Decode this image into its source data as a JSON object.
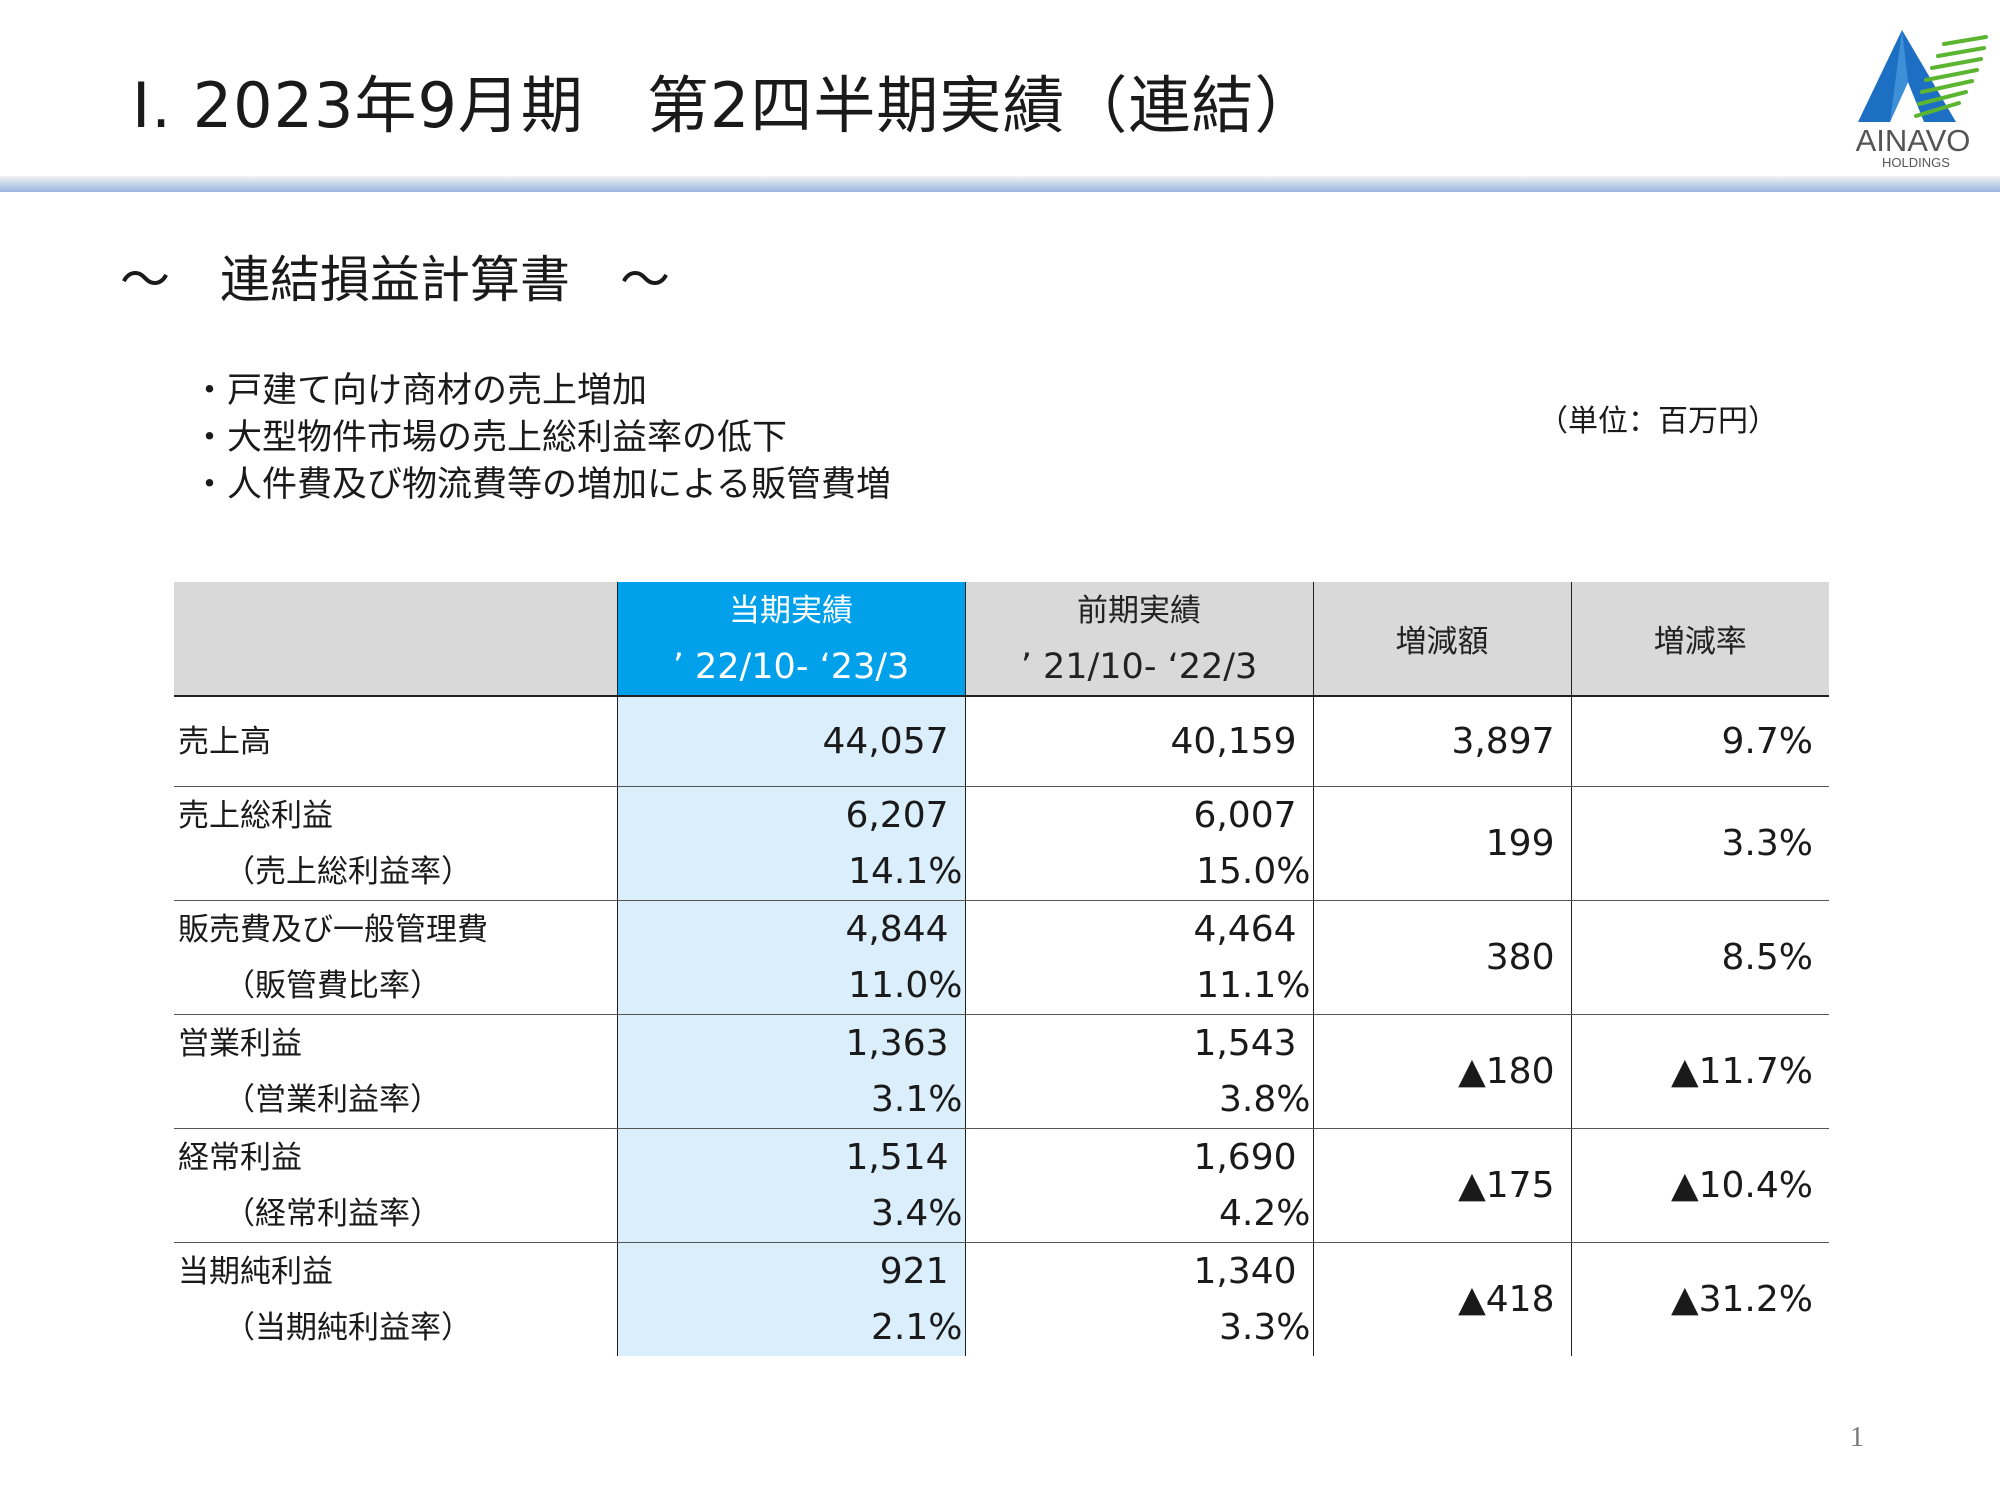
{
  "header": {
    "title": "Ⅰ. 2023年9月期　第2四半期実績（連結）",
    "logo_text": "AINAVO",
    "logo_sub": "HOLDINGS"
  },
  "section": {
    "subtitle": "～　連結損益計算書　～",
    "bullets": [
      "・戸建て向け商材の売上増加",
      "・大型物件市場の売上総利益率の低下",
      "・人件費及び物流費等の増加による販管費増"
    ],
    "unit": "（単位：百万円）"
  },
  "table": {
    "columns": [
      {
        "title": "当期実績",
        "period": "’ 22/10-  ‘23/3"
      },
      {
        "title": "前期実績",
        "period": "’ 21/10-  ‘22/3"
      },
      {
        "title": "増減額",
        "period": ""
      },
      {
        "title": "増減率",
        "period": ""
      }
    ],
    "rows": [
      {
        "label": "売上高",
        "sublabel": "",
        "current": "44,057",
        "current_ratio": "",
        "prior": "40,159",
        "prior_ratio": "",
        "change": "3,897",
        "change_rate": "9.7%"
      },
      {
        "label": "売上総利益",
        "sublabel": "（売上総利益率）",
        "current": "6,207",
        "current_ratio": "14.1%",
        "prior": "6,007",
        "prior_ratio": "15.0%",
        "change": "199",
        "change_rate": "3.3%"
      },
      {
        "label": "販売費及び一般管理費",
        "sublabel": "（販管費比率）",
        "current": "4,844",
        "current_ratio": "11.0%",
        "prior": "4,464",
        "prior_ratio": "11.1%",
        "change": "380",
        "change_rate": "8.5%"
      },
      {
        "label": "営業利益",
        "sublabel": "（営業利益率）",
        "current": "1,363",
        "current_ratio": "3.1%",
        "prior": "1,543",
        "prior_ratio": "3.8%",
        "change": "▲180",
        "change_rate": "▲11.7%"
      },
      {
        "label": "経常利益",
        "sublabel": "（経常利益率）",
        "current": "1,514",
        "current_ratio": "3.4%",
        "prior": "1,690",
        "prior_ratio": "4.2%",
        "change": "▲175",
        "change_rate": "▲10.4%"
      },
      {
        "label": "当期純利益",
        "sublabel": "（当期純利益率）",
        "current": "921",
        "current_ratio": "2.1%",
        "prior": "1,340",
        "prior_ratio": "3.3%",
        "change": "▲418",
        "change_rate": "▲31.2%"
      }
    ]
  },
  "footer": {
    "page_number": "1"
  },
  "colors": {
    "current_header": "#00a0ea",
    "current_column": "#dbeefb",
    "header_gray": "#d9d9d9",
    "logo_blue": "#1d6fc4",
    "logo_green": "#5cb531"
  }
}
